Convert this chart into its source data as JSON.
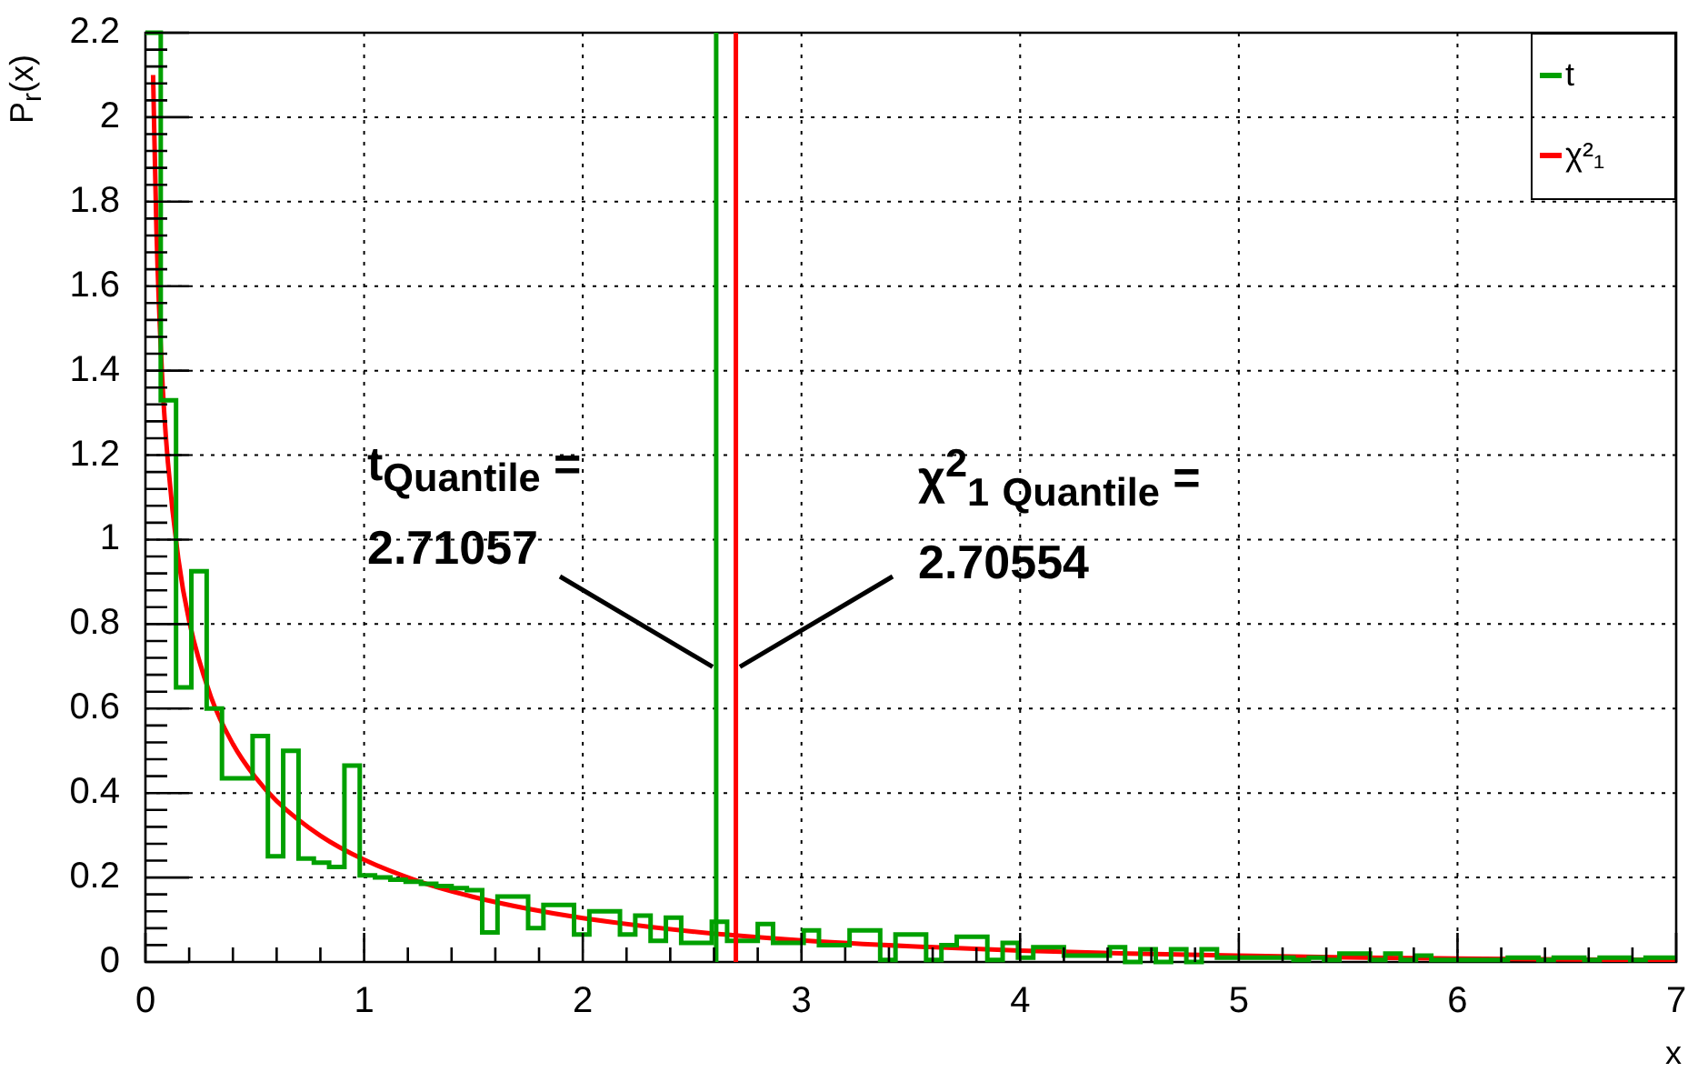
{
  "chart_data": {
    "type": "histogram",
    "xlabel": "x",
    "ylabel": "P$_{r}$(x)",
    "bins": [
      0,
      0.07,
      0.14,
      0.21,
      0.28,
      0.35,
      0.42,
      0.49,
      0.56,
      0.63,
      0.7,
      0.77,
      0.84,
      0.91,
      0.98,
      1.05,
      1.12,
      1.19,
      1.26,
      1.33,
      1.4,
      1.47,
      1.54,
      1.61,
      1.68,
      1.75,
      1.82,
      1.89,
      1.96,
      2.03,
      2.1,
      2.17,
      2.24,
      2.31,
      2.38,
      2.45,
      2.52,
      2.59,
      2.66,
      2.73,
      2.8,
      2.87,
      2.94,
      3.01,
      3.08,
      3.15,
      3.22,
      3.29,
      3.36,
      3.43,
      3.5,
      3.57,
      3.64,
      3.71,
      3.78,
      3.85,
      3.92,
      3.99,
      4.06,
      4.13,
      4.2,
      4.27,
      4.34,
      4.41,
      4.48,
      4.55,
      4.62,
      4.69,
      4.76,
      4.83,
      4.9,
      4.97,
      5.04,
      5.11,
      5.18,
      5.25,
      5.32,
      5.39,
      5.46,
      5.53,
      5.6,
      5.67,
      5.74,
      5.81,
      5.88,
      5.95,
      6.02,
      6.09,
      6.16,
      6.23,
      6.3,
      6.37,
      6.44,
      6.51,
      6.58,
      6.65,
      6.72,
      6.79,
      6.86,
      6.93,
      7
    ],
    "series": [
      {
        "name": "t",
        "color": "#00a000",
        "values": [
          2.2,
          1.33,
          0.65,
          0.925,
          0.6,
          0.435,
          0.435,
          0.535,
          0.25,
          0.5,
          0.245,
          0.235,
          0.225,
          0.465,
          0.205,
          0.2,
          0.195,
          0.19,
          0.185,
          0.18,
          0.175,
          0.17,
          0.07,
          0.155,
          0.155,
          0.08,
          0.135,
          0.135,
          0.065,
          0.12,
          0.12,
          0.065,
          0.11,
          0.05,
          0.105,
          0.045,
          0.045,
          0.095,
          0.05,
          0.05,
          0.09,
          0.045,
          0.045,
          0.075,
          0.04,
          0.04,
          0.075,
          0.075,
          0.005,
          0.065,
          0.065,
          0.005,
          0.04,
          0.06,
          0.06,
          0.005,
          0.045,
          0.01,
          0.035,
          0.035,
          0.015,
          0.015,
          0.015,
          0.035,
          0,
          0.03,
          0,
          0.03,
          0,
          0.03,
          0.01,
          0.01,
          0.01,
          0.01,
          0.01,
          0.005,
          0.01,
          0.005,
          0.02,
          0.02,
          0.005,
          0.02,
          0.005,
          0.015,
          0.005,
          0.005,
          0.005,
          0.005,
          0.005,
          0.01,
          0.01,
          0.005,
          0.01,
          0.01,
          0.005,
          0.01,
          0.01,
          0.005,
          0.01,
          0.01
        ]
      },
      {
        "name": "χ²₁",
        "type": "line",
        "color": "#ff0000",
        "x": [
          0.035,
          0.05,
          0.075,
          0.1,
          0.15,
          0.2,
          0.3,
          0.4,
          0.5,
          0.6,
          0.8,
          1,
          1.25,
          1.5,
          1.75,
          2,
          2.5,
          3,
          3.5,
          4,
          4.5,
          5,
          5.5,
          6,
          6.5,
          7
        ],
        "values": [
          2.1,
          1.74,
          1.4,
          1.2,
          0.956,
          0.807,
          0.627,
          0.516,
          0.439,
          0.381,
          0.299,
          0.242,
          0.191,
          0.154,
          0.126,
          0.104,
          0.072,
          0.051,
          0.037,
          0.027,
          0.02,
          0.015,
          0.011,
          0.008,
          0.006,
          0.005
        ]
      }
    ],
    "xlim": [
      0,
      7
    ],
    "ylim": [
      0,
      2.2
    ],
    "xticks": [
      0,
      1,
      2,
      3,
      4,
      5,
      6,
      7
    ],
    "yticks": [
      0,
      0.2,
      0.4,
      0.6,
      0.8,
      1,
      1.2,
      1.4,
      1.6,
      1.8,
      2,
      2.2
    ],
    "grid": true,
    "legend": "top right",
    "ref_lines": [
      {
        "axis": "x",
        "value": 2.61,
        "color": "#00a000"
      },
      {
        "axis": "x",
        "value": 2.7,
        "color": "#ff0000"
      }
    ],
    "annotations": [
      {
        "text": "t$_{Quantile}$ = 2.71057",
        "x": 2.61,
        "y": 0.7
      },
      "χ$^{2}$$_{1}$ $_{Quantile}$ = 2.70554"
    ]
  }
}
